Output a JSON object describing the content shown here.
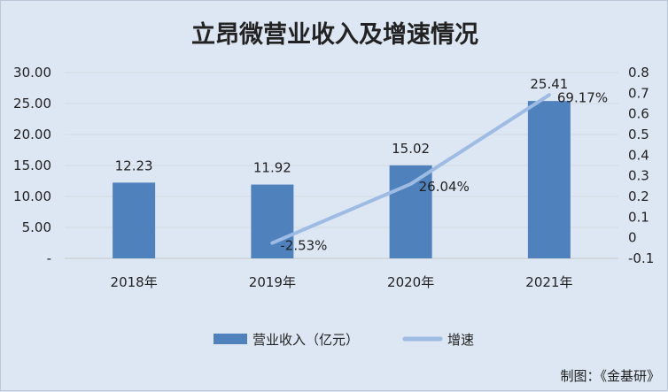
{
  "chart_data": {
    "type": "bar",
    "title": "立昂微营业收入及增速情况",
    "categories": [
      "2018年",
      "2019年",
      "2020年",
      "2021年"
    ],
    "series": [
      {
        "name": "营业收入（亿元）",
        "type": "bar",
        "axis": "left",
        "values": [
          12.23,
          11.92,
          15.02,
          25.41
        ],
        "labels": [
          "12.23",
          "11.92",
          "15.02",
          "25.41"
        ]
      },
      {
        "name": "增速",
        "type": "line",
        "axis": "right",
        "values": [
          null,
          -0.0253,
          0.2604,
          0.6917
        ],
        "labels": [
          "",
          "-2.53%",
          "26.04%",
          "69.17%"
        ]
      }
    ],
    "y_left": {
      "range": [
        0,
        30
      ],
      "ticks": [
        "-",
        "5.00",
        "10.00",
        "15.00",
        "20.00",
        "25.00",
        "30.00"
      ]
    },
    "y_right": {
      "range": [
        -0.1,
        0.8
      ],
      "ticks": [
        "-0.1",
        "0",
        "0.1",
        "0.2",
        "0.3",
        "0.4",
        "0.5",
        "0.6",
        "0.7",
        "0.8"
      ]
    },
    "grid": true,
    "legend_position": "bottom",
    "colors": {
      "bar": "#4f81bd",
      "line": "#9dbbe3"
    }
  },
  "footer": {
    "credit": "制图：《金基研》"
  }
}
